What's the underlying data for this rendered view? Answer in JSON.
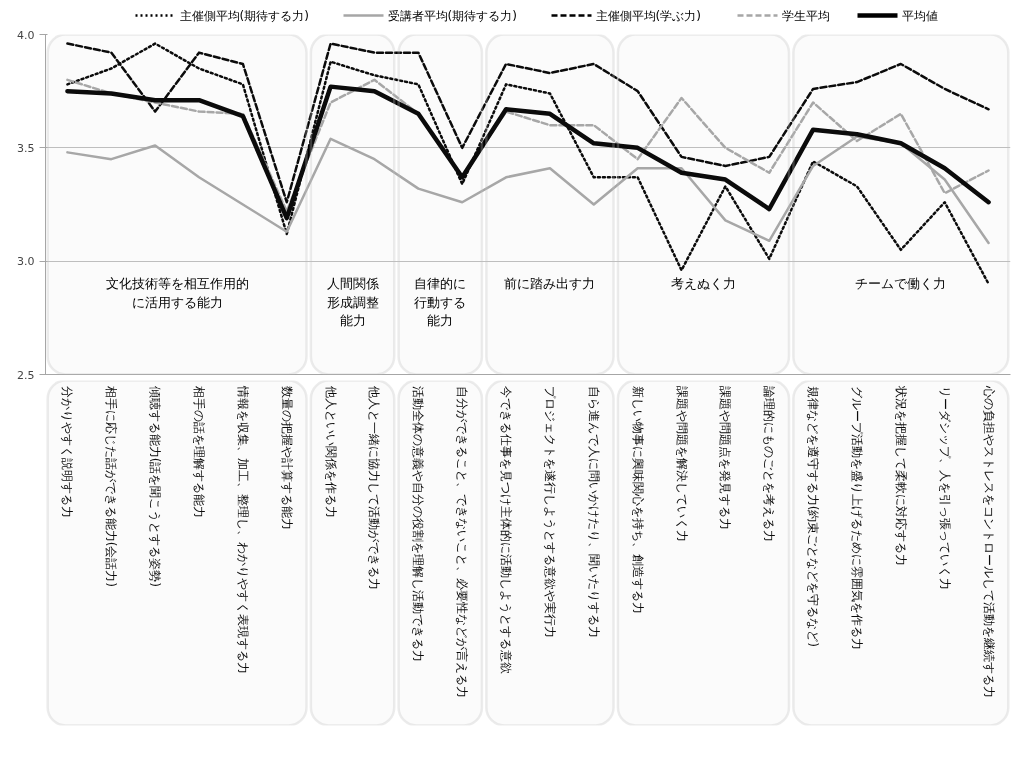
{
  "chart_data": {
    "type": "line",
    "categories": [
      "分かりやすく説明する力",
      "相手に応じた話ができる能力(会話力)",
      "傾聴する能力(話を聞こうとする姿勢)",
      "相手の話を理解する能力",
      "情報を収集、加工、整理し、わかりやすく表現する力",
      "数量の把握や計算する能力",
      "他人といい関係を作る力",
      "他人と一緒に協力して活動ができる力",
      "活動全体の意義や自分の役割を理解し活動できる力",
      "自分ができること、できないこと、必要性などが言える力",
      "今できる仕事を見つけ主体的に活動しようとする意欲",
      "プロジェクトを遂行しようとする意欲や実行力",
      "自ら進んで人に問いかけたり、聞いたりする力",
      "新しい物事に興味関心を持ち、創造する力",
      "課題や問題を解決していく力",
      "課題や問題点を発見する力",
      "論理的にものごとを考える力",
      "規律などを遵守する力(約束ごとなどを守るなど)",
      "グループ活動を盛り上げるために雰囲気を作る力",
      "状況を把握して柔軟に対応する力",
      "リーダシップ、人を引っ張っていく力",
      "心の負担やストレスをコントロールして活動を継続する力"
    ],
    "series": [
      {
        "name": "主催側平均(期待する力)",
        "color": "#000000",
        "line_style": "dotted",
        "values": [
          3.78,
          3.85,
          3.96,
          3.85,
          3.78,
          3.12,
          3.88,
          3.82,
          3.78,
          3.34,
          3.78,
          3.74,
          3.37,
          3.37,
          2.96,
          3.33,
          3.01,
          3.44,
          3.33,
          3.05,
          3.26,
          2.9
        ]
      },
      {
        "name": "受講者平均(期待する力)",
        "color": "#a6a6a6",
        "line_style": "solid",
        "values": [
          3.48,
          3.45,
          3.51,
          3.37,
          3.25,
          3.13,
          3.54,
          3.45,
          3.32,
          3.26,
          3.37,
          3.41,
          3.25,
          3.41,
          3.41,
          3.18,
          3.09,
          3.42,
          3.55,
          3.52,
          3.36,
          3.08
        ]
      },
      {
        "name": "主催側平均(学ぶ力)",
        "color": "#000000",
        "line_style": "dashed",
        "values": [
          3.96,
          3.92,
          3.66,
          3.92,
          3.87,
          3.26,
          3.96,
          3.92,
          3.92,
          3.5,
          3.87,
          3.83,
          3.87,
          3.75,
          3.46,
          3.42,
          3.46,
          3.76,
          3.79,
          3.87,
          3.76,
          3.67
        ]
      },
      {
        "name": "学生平均",
        "color": "#a6a6a6",
        "line_style": "dashed",
        "values": [
          3.8,
          3.74,
          3.7,
          3.66,
          3.65,
          3.22,
          3.7,
          3.8,
          3.65,
          3.37,
          3.66,
          3.6,
          3.6,
          3.45,
          3.72,
          3.5,
          3.39,
          3.7,
          3.53,
          3.65,
          3.3,
          3.4
        ]
      },
      {
        "name": "平均値",
        "color": "#000000",
        "line_style": "solid",
        "values": [
          3.75,
          3.74,
          3.71,
          3.71,
          3.64,
          3.19,
          3.77,
          3.75,
          3.65,
          3.37,
          3.67,
          3.65,
          3.52,
          3.5,
          3.39,
          3.36,
          3.23,
          3.58,
          3.56,
          3.52,
          3.41,
          3.26
        ]
      }
    ],
    "ylim": [
      2.5,
      4.0
    ],
    "yticks": [
      2.5,
      {
        "value": 3.0,
        "label": "3.0"
      },
      3.5,
      {
        "value": 4.0,
        "label": "4.0"
      }
    ],
    "grid": "y",
    "legend": "top",
    "bands": [
      {
        "axis": "x",
        "from": "分かりやすく説明する力",
        "to": "数量の把握や計算する能力",
        "label": "文化技術等を相互作用的に活用する能力",
        "color": "#bfbfbf"
      },
      {
        "axis": "x",
        "from": "他人といい関係を作る力",
        "to": "他人と一緒に協力して活動ができる力",
        "label": "人間関係形成調整能力",
        "color": "#bfbfbf"
      },
      {
        "axis": "x",
        "from": "活動全体の意義や自分の役割を理解し活動できる力",
        "to": "自分ができること、できないこと、必要性などが言える力",
        "label": "自律的に行動する能力",
        "color": "#bfbfbf"
      },
      {
        "axis": "x",
        "from": "今できる仕事を見つけ主体的に活動しようとする意欲",
        "to": "自ら進んで人に問いかけたり、聞いたりする力",
        "label": "前に踏み出す力",
        "color": "#bfbfbf"
      },
      {
        "axis": "x",
        "from": "新しい物事に興味関心を持ち、創造する力",
        "to": "論理的にものごとを考える力",
        "label": "考えぬく力",
        "color": "#bfbfbf"
      },
      {
        "axis": "x",
        "from": "規律などを遵守する力(約束ごとなどを守るなど)",
        "to": "心の負担やストレスをコントロールして活動を継続する力",
        "label": "チームで働く力",
        "color": "#bfbfbf"
      }
    ]
  }
}
